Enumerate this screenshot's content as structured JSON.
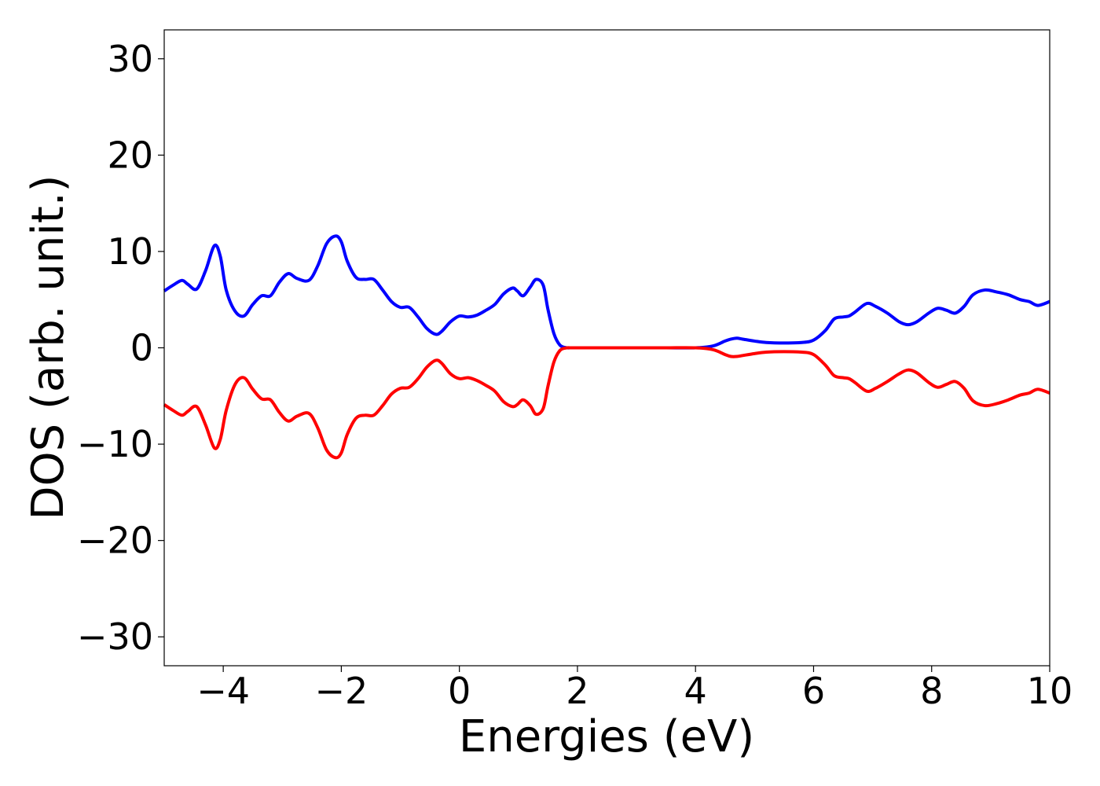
{
  "chart_data": {
    "type": "line",
    "xlabel": "Energies (eV)",
    "ylabel": "DOS (arb. unit.)",
    "xlim": [
      -5,
      10
    ],
    "ylim": [
      -33,
      33
    ],
    "xticks": [
      -4,
      -2,
      0,
      2,
      4,
      6,
      8,
      10
    ],
    "yticks": [
      -30,
      -20,
      -10,
      0,
      10,
      20,
      30
    ],
    "xtick_labels": [
      "−4",
      "−2",
      "0",
      "2",
      "4",
      "6",
      "8",
      "10"
    ],
    "ytick_labels": [
      "−30",
      "−20",
      "−10",
      "0",
      "10",
      "20",
      "30"
    ],
    "grid": false,
    "legend": "none",
    "series": [
      {
        "color": "#0000ff",
        "x": [
          -5.0,
          -4.85,
          -4.7,
          -4.6,
          -4.45,
          -4.3,
          -4.15,
          -4.05,
          -3.95,
          -3.8,
          -3.65,
          -3.5,
          -3.35,
          -3.2,
          -3.05,
          -2.9,
          -2.75,
          -2.55,
          -2.4,
          -2.25,
          -2.1,
          -2.0,
          -1.9,
          -1.75,
          -1.6,
          -1.45,
          -1.3,
          -1.15,
          -1.0,
          -0.85,
          -0.7,
          -0.55,
          -0.4,
          -0.3,
          -0.15,
          0.0,
          0.15,
          0.3,
          0.45,
          0.6,
          0.75,
          0.9,
          0.98,
          1.08,
          1.2,
          1.3,
          1.42,
          1.5,
          1.6,
          1.7,
          1.8,
          1.9,
          2.0,
          2.5,
          3.0,
          3.5,
          4.0,
          4.3,
          4.5,
          4.6,
          4.7,
          4.8,
          5.0,
          5.2,
          5.5,
          5.8,
          6.0,
          6.2,
          6.35,
          6.5,
          6.6,
          6.7,
          6.9,
          7.05,
          7.25,
          7.45,
          7.6,
          7.75,
          7.95,
          8.1,
          8.25,
          8.4,
          8.55,
          8.7,
          8.9,
          9.1,
          9.3,
          9.5,
          9.65,
          9.8,
          10.0
        ],
        "y": [
          5.9,
          6.5,
          7.0,
          6.6,
          6.1,
          8.0,
          10.6,
          9.5,
          6.0,
          3.8,
          3.3,
          4.5,
          5.4,
          5.4,
          6.8,
          7.7,
          7.2,
          7.0,
          8.5,
          10.8,
          11.6,
          11.0,
          9.0,
          7.3,
          7.1,
          7.1,
          6.0,
          4.8,
          4.2,
          4.2,
          3.2,
          2.0,
          1.4,
          1.7,
          2.7,
          3.3,
          3.2,
          3.4,
          3.9,
          4.5,
          5.6,
          6.2,
          5.9,
          5.4,
          6.3,
          7.1,
          6.5,
          4.0,
          1.5,
          0.3,
          0.02,
          0.0,
          0.0,
          0.0,
          0.0,
          0.0,
          0.0,
          0.2,
          0.7,
          0.9,
          1.0,
          0.9,
          0.7,
          0.55,
          0.5,
          0.55,
          0.8,
          1.8,
          3.0,
          3.2,
          3.3,
          3.7,
          4.6,
          4.3,
          3.6,
          2.7,
          2.4,
          2.7,
          3.6,
          4.1,
          3.9,
          3.6,
          4.3,
          5.5,
          6.0,
          5.8,
          5.5,
          5.0,
          4.8,
          4.4,
          4.8
        ]
      },
      {
        "color": "#ff0000",
        "x": [
          -5.0,
          -4.85,
          -4.7,
          -4.6,
          -4.45,
          -4.3,
          -4.15,
          -4.05,
          -3.95,
          -3.8,
          -3.65,
          -3.5,
          -3.35,
          -3.2,
          -3.05,
          -2.9,
          -2.75,
          -2.55,
          -2.4,
          -2.25,
          -2.1,
          -2.0,
          -1.9,
          -1.75,
          -1.6,
          -1.45,
          -1.3,
          -1.15,
          -1.0,
          -0.85,
          -0.7,
          -0.55,
          -0.4,
          -0.3,
          -0.15,
          0.0,
          0.15,
          0.3,
          0.45,
          0.6,
          0.75,
          0.9,
          0.98,
          1.08,
          1.2,
          1.3,
          1.42,
          1.5,
          1.6,
          1.7,
          1.8,
          1.9,
          2.0,
          2.5,
          3.0,
          3.5,
          4.0,
          4.3,
          4.5,
          4.6,
          4.7,
          4.8,
          5.0,
          5.2,
          5.5,
          5.8,
          6.0,
          6.2,
          6.35,
          6.5,
          6.6,
          6.7,
          6.9,
          7.05,
          7.25,
          7.45,
          7.6,
          7.75,
          7.95,
          8.1,
          8.25,
          8.4,
          8.55,
          8.7,
          8.9,
          9.1,
          9.3,
          9.5,
          9.65,
          9.8,
          10.0
        ],
        "y": [
          -5.9,
          -6.5,
          -7.0,
          -6.6,
          -6.1,
          -8.0,
          -10.4,
          -9.5,
          -6.5,
          -3.8,
          -3.1,
          -4.3,
          -5.3,
          -5.4,
          -6.7,
          -7.6,
          -7.1,
          -6.8,
          -8.3,
          -10.6,
          -11.4,
          -10.9,
          -9.0,
          -7.3,
          -7.0,
          -7.0,
          -6.0,
          -4.8,
          -4.2,
          -4.1,
          -3.2,
          -2.0,
          -1.3,
          -1.6,
          -2.7,
          -3.2,
          -3.1,
          -3.4,
          -3.9,
          -4.5,
          -5.6,
          -6.1,
          -5.9,
          -5.4,
          -6.0,
          -6.9,
          -6.3,
          -4.0,
          -1.5,
          -0.3,
          -0.02,
          0.0,
          0.0,
          0.0,
          0.0,
          0.0,
          0.0,
          -0.2,
          -0.7,
          -0.9,
          -0.9,
          -0.8,
          -0.6,
          -0.45,
          -0.4,
          -0.45,
          -0.7,
          -1.8,
          -2.9,
          -3.1,
          -3.2,
          -3.6,
          -4.5,
          -4.2,
          -3.5,
          -2.7,
          -2.3,
          -2.6,
          -3.6,
          -4.1,
          -3.8,
          -3.5,
          -4.2,
          -5.5,
          -6.0,
          -5.8,
          -5.4,
          -4.9,
          -4.7,
          -4.3,
          -4.7
        ]
      }
    ]
  }
}
